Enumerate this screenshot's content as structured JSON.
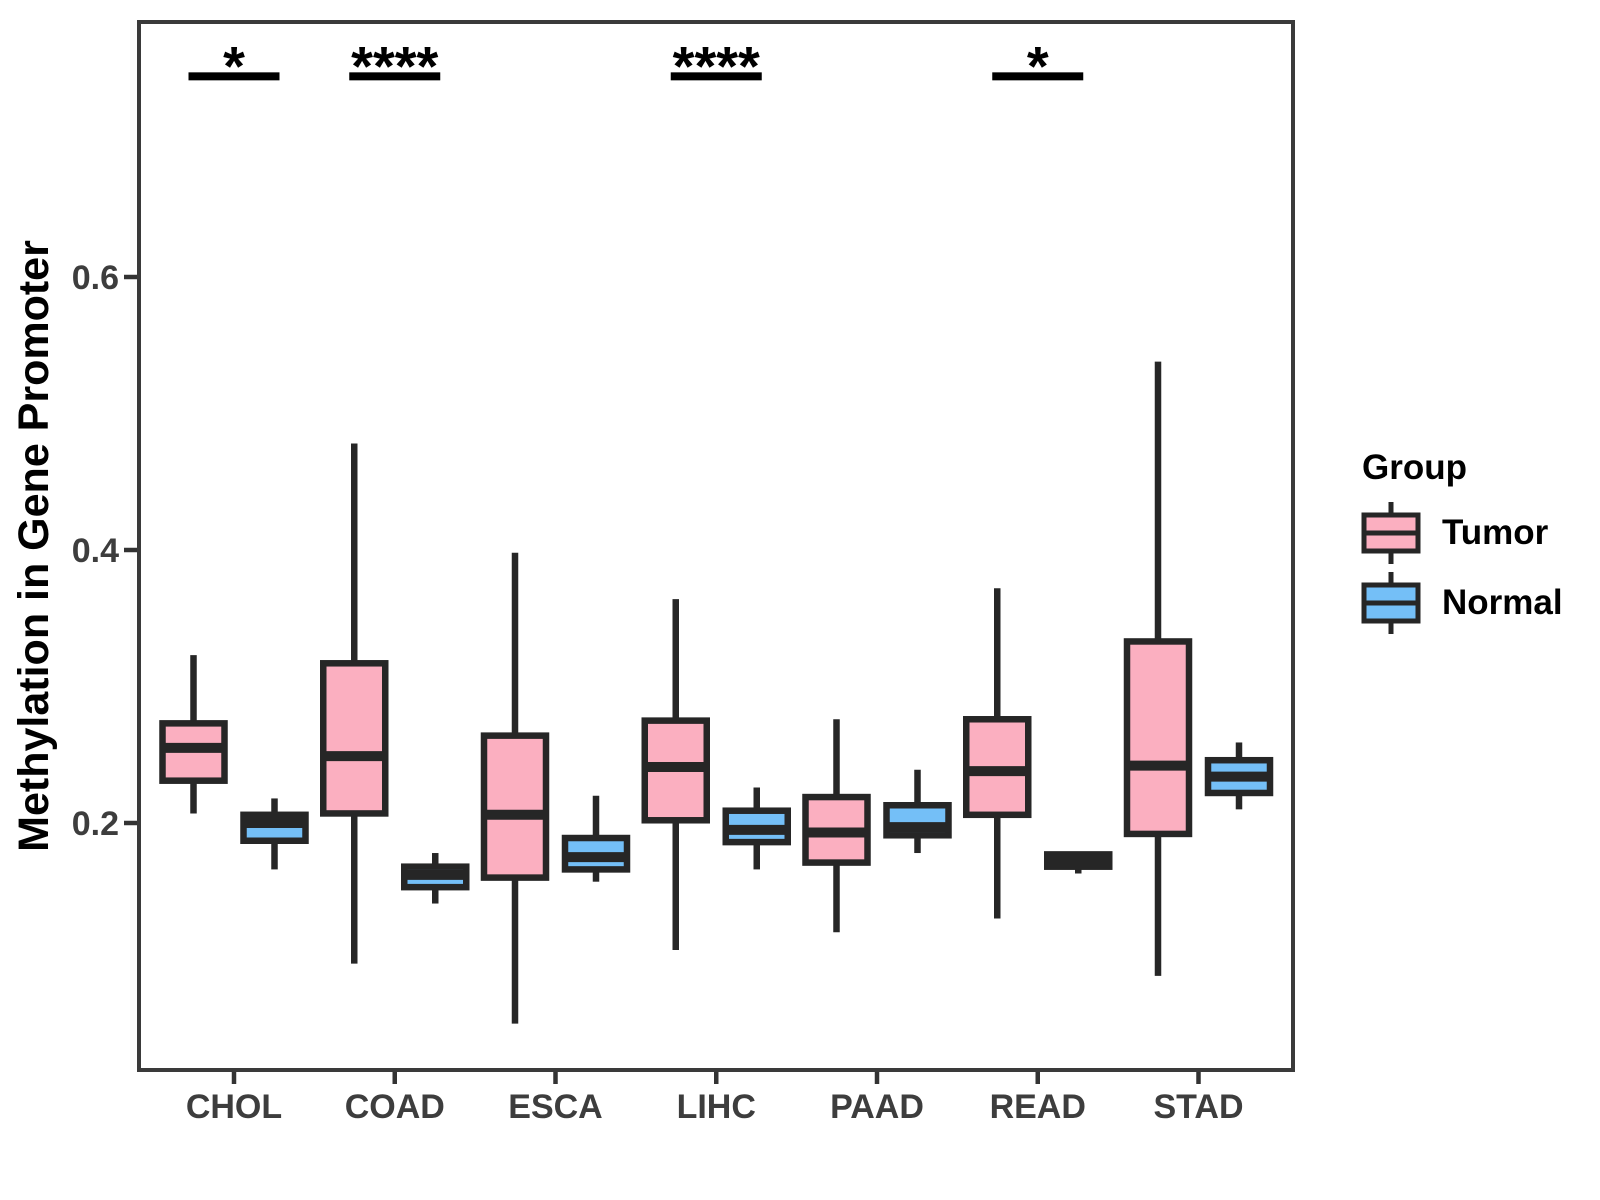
{
  "chart_data": {
    "type": "boxplot",
    "title": "",
    "xlabel": "",
    "ylabel": "Methylation in Gene Promoter",
    "categories": [
      "CHOL",
      "COAD",
      "ESCA",
      "LIHC",
      "PAAD",
      "READ",
      "STAD"
    ],
    "yticks": [
      0.2,
      0.4,
      0.6
    ],
    "ylim": [
      0.02,
      0.79
    ],
    "grid": false,
    "legend_position": "right",
    "series": [
      {
        "name": "Tumor",
        "color": "#FBAFC0",
        "boxes": [
          {
            "category": "CHOL",
            "low": 0.207,
            "q1": 0.231,
            "median": 0.255,
            "q3": 0.273,
            "high": 0.323
          },
          {
            "category": "COAD",
            "low": 0.097,
            "q1": 0.207,
            "median": 0.249,
            "q3": 0.317,
            "high": 0.478
          },
          {
            "category": "ESCA",
            "low": 0.053,
            "q1": 0.16,
            "median": 0.206,
            "q3": 0.264,
            "high": 0.398
          },
          {
            "category": "LIHC",
            "low": 0.107,
            "q1": 0.202,
            "median": 0.241,
            "q3": 0.275,
            "high": 0.364
          },
          {
            "category": "PAAD",
            "low": 0.12,
            "q1": 0.171,
            "median": 0.193,
            "q3": 0.219,
            "high": 0.276
          },
          {
            "category": "READ",
            "low": 0.13,
            "q1": 0.206,
            "median": 0.238,
            "q3": 0.276,
            "high": 0.372
          },
          {
            "category": "STAD",
            "low": 0.088,
            "q1": 0.192,
            "median": 0.242,
            "q3": 0.333,
            "high": 0.538
          }
        ]
      },
      {
        "name": "Normal",
        "color": "#74BFF7",
        "boxes": [
          {
            "category": "CHOL",
            "low": 0.166,
            "q1": 0.187,
            "median": 0.2,
            "q3": 0.206,
            "high": 0.218
          },
          {
            "category": "COAD",
            "low": 0.141,
            "q1": 0.153,
            "median": 0.162,
            "q3": 0.168,
            "high": 0.178
          },
          {
            "category": "ESCA",
            "low": 0.157,
            "q1": 0.166,
            "median": 0.175,
            "q3": 0.189,
            "high": 0.22
          },
          {
            "category": "LIHC",
            "low": 0.166,
            "q1": 0.186,
            "median": 0.195,
            "q3": 0.209,
            "high": 0.226
          },
          {
            "category": "PAAD",
            "low": 0.178,
            "q1": 0.191,
            "median": 0.197,
            "q3": 0.213,
            "high": 0.239
          },
          {
            "category": "READ",
            "low": 0.163,
            "q1": 0.168,
            "median": 0.172,
            "q3": 0.177,
            "high": 0.177
          },
          {
            "category": "STAD",
            "low": 0.21,
            "q1": 0.222,
            "median": 0.234,
            "q3": 0.246,
            "high": 0.259
          }
        ]
      }
    ],
    "significance": [
      {
        "category": "CHOL",
        "label": "*",
        "y": 0.747
      },
      {
        "category": "COAD",
        "label": "****",
        "y": 0.747
      },
      {
        "category": "LIHC",
        "label": "****",
        "y": 0.747
      },
      {
        "category": "READ",
        "label": "*",
        "y": 0.747
      }
    ],
    "legend": {
      "title": "Group",
      "entries": [
        {
          "label": "Tumor",
          "color": "#FBAFC0"
        },
        {
          "label": "Normal",
          "color": "#74BFF7"
        }
      ]
    },
    "colors": {
      "box_border": "#262626",
      "panel_border": "#3a3a3a",
      "tick": "#333333",
      "tick_label": "#3d3d3d",
      "annotation": "#000000",
      "background": "#ffffff"
    }
  }
}
